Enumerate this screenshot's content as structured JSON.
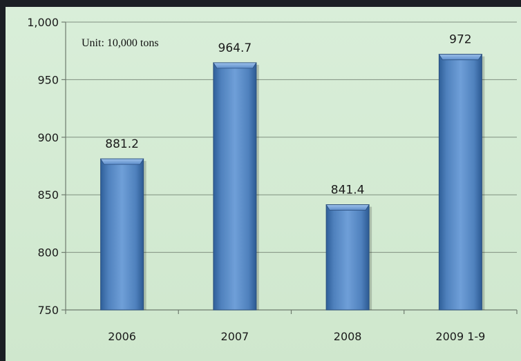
{
  "chart_data": {
    "type": "bar",
    "unit_note": "Unit: 10,000 tons",
    "categories": [
      "2006",
      "2007",
      "2008",
      "2009 1-9"
    ],
    "values": [
      881.2,
      964.7,
      841.4,
      972
    ],
    "data_labels": [
      "881.2",
      "964.7",
      "841.4",
      "972"
    ],
    "ylim": [
      750,
      1000
    ],
    "yticks": [
      750,
      800,
      850,
      900,
      950,
      1000
    ],
    "ytick_labels": [
      "750",
      "800",
      "850",
      "900",
      "950",
      "1,000"
    ],
    "grid": true,
    "bar_color": "#4f81bd",
    "background_color": "#d5ebd4"
  }
}
